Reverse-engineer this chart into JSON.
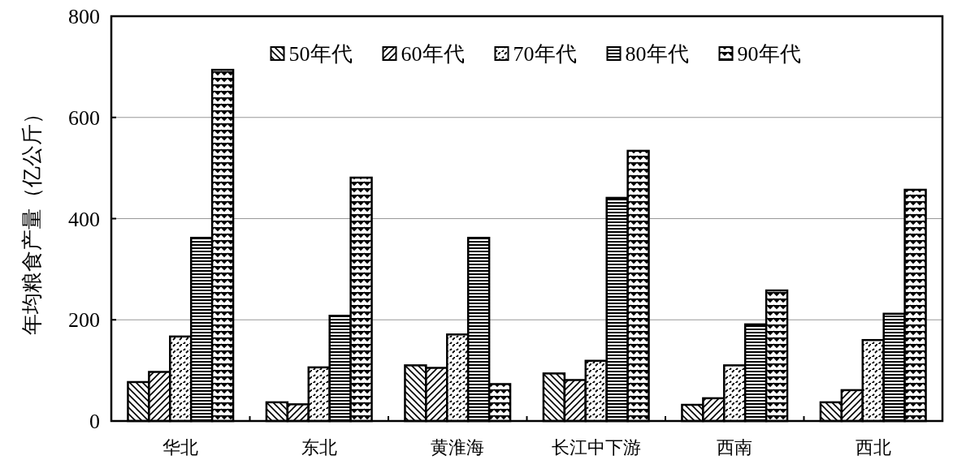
{
  "chart_data": {
    "type": "bar",
    "ylabel": "年均粮食产量（亿公斤）",
    "categories": [
      "华北",
      "东北",
      "黄淮海",
      "长江中下游",
      "西南",
      "西北"
    ],
    "series": [
      {
        "name": "50年代",
        "color": "#000000",
        "values": [
          77,
          37,
          110,
          94,
          32,
          37
        ]
      },
      {
        "name": "60年代",
        "color": "#000000",
        "values": [
          97,
          33,
          105,
          81,
          45,
          61
        ]
      },
      {
        "name": "70年代",
        "color": "#000000",
        "values": [
          167,
          106,
          171,
          119,
          110,
          160
        ]
      },
      {
        "name": "80年代",
        "color": "#000000",
        "values": [
          362,
          208,
          362,
          441,
          191,
          212
        ]
      },
      {
        "name": "90年代",
        "color": "#000000",
        "values": [
          694,
          481,
          73,
          534,
          258,
          457
        ]
      }
    ],
    "ylim": [
      0,
      800
    ],
    "yticks": [
      0,
      200,
      400,
      600,
      800
    ],
    "grid": "y",
    "legend": "top"
  }
}
